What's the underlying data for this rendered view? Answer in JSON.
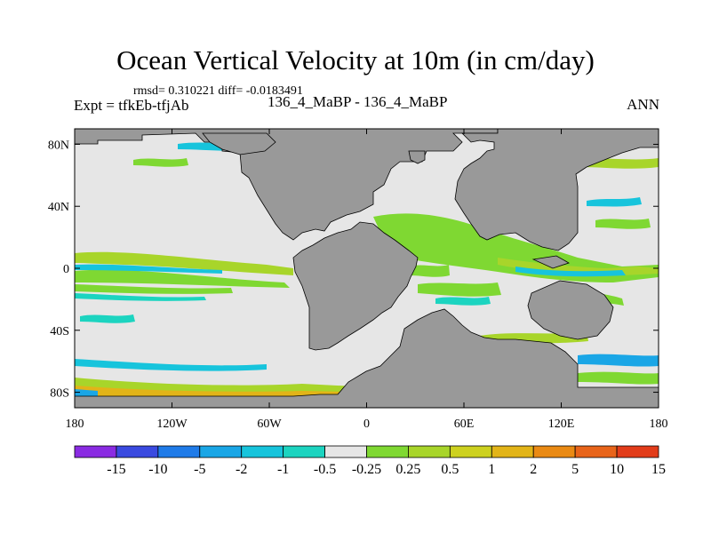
{
  "title": "Ocean Vertical Velocity at 10m (in cm/day)",
  "stats_line": "rmsd= 0.310221 diff= -0.0183491",
  "expt_label": "Expt = tfkEb-tfjAb",
  "case_label": "136_4_MaBP - 136_4_MaBP",
  "season_label": "ANN",
  "map": {
    "projection": "cylindrical equidistant",
    "lon_range": [
      -180,
      180
    ],
    "lat_range": [
      -90,
      90
    ],
    "ocean_color": "#e6e6e6",
    "land_color": "#999999",
    "x_tick_labels": [
      "180",
      "120W",
      "60W",
      "0",
      "60E",
      "120E",
      "180"
    ],
    "y_tick_labels": [
      "80N",
      "40N",
      "0",
      "40S",
      "80S"
    ]
  },
  "colorbar": {
    "labels": [
      "-15",
      "-10",
      "-5",
      "-2",
      "-1",
      "-0.5",
      "-0.25",
      "0.25",
      "0.5",
      "1",
      "2",
      "5",
      "10",
      "15"
    ],
    "colors": [
      "#8a2be2",
      "#3a4ae0",
      "#1f7be8",
      "#1aa6e6",
      "#17c4dc",
      "#1cd4c0",
      "#e6e6e6",
      "#7fd832",
      "#a8d52a",
      "#cdd11f",
      "#e2b418",
      "#ea8a14",
      "#e8641a",
      "#e23c1a"
    ]
  }
}
